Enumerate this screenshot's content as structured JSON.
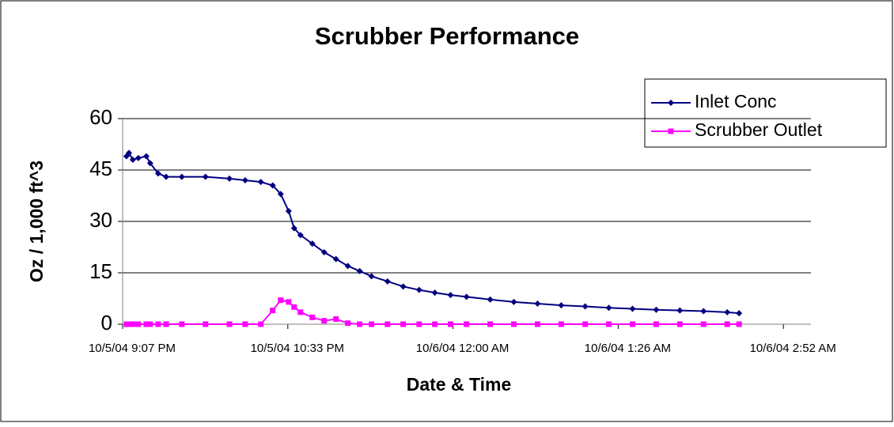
{
  "chart_data": {
    "type": "line",
    "title": "Scrubber Performance",
    "x_label": "Date & Time",
    "y_label": "Oz / 1,000 ft^3",
    "x": [
      38265.8814,
      38265.8823,
      38265.8837,
      38265.8857,
      38265.8886,
      38265.89,
      38265.8929,
      38265.8958,
      38265.9015,
      38265.9101,
      38265.9188,
      38265.9245,
      38265.9302,
      38265.9345,
      38265.9374,
      38265.9403,
      38265.9423,
      38265.9446,
      38265.9489,
      38265.9532,
      38265.9575,
      38265.9618,
      38265.9661,
      38265.9704,
      38265.9762,
      38265.9819,
      38265.9877,
      38265.9934,
      38265.9991,
      38266.0049,
      38266.0135,
      38266.0221,
      38266.0307,
      38266.0393,
      38266.048,
      38266.0566,
      38266.0652,
      38266.0738,
      38266.0824,
      38266.091,
      38266.0996,
      38266.1039
    ],
    "series": [
      {
        "name": "Inlet Conc",
        "color": "#000080",
        "marker": "diamond",
        "values": [
          49,
          50,
          48,
          48.5,
          49,
          47,
          44,
          43,
          43,
          43,
          42.5,
          42,
          41.5,
          40.5,
          38,
          33,
          28,
          26,
          23.5,
          21,
          19,
          17,
          15.5,
          14,
          12.5,
          11,
          10,
          9.2,
          8.5,
          8,
          7.2,
          6.5,
          6,
          5.5,
          5.2,
          4.8,
          4.5,
          4.2,
          4,
          3.8,
          3.5,
          3.2
        ]
      },
      {
        "name": "Scrubber Outlet",
        "color": "#ff00ff",
        "marker": "square",
        "values": [
          0,
          0,
          0,
          0,
          0,
          0,
          0,
          0,
          0,
          0,
          0,
          0,
          0,
          4,
          7,
          6.5,
          5,
          3.5,
          2,
          1,
          1.5,
          0.3,
          0,
          0,
          0,
          0,
          0,
          0,
          0,
          0,
          0,
          0,
          0,
          0,
          0,
          0,
          0,
          0,
          0,
          0,
          0,
          0
        ]
      }
    ],
    "xlim": [
      38265.88,
      38266.13
    ],
    "xticks": [
      {
        "value": 38265.88,
        "label": "10/5/04 9:07 PM"
      },
      {
        "value": 38265.94,
        "label": "10/5/04 10:33 PM"
      },
      {
        "value": 38266.0,
        "label": "10/6/04 12:00 AM"
      },
      {
        "value": 38266.06,
        "label": "10/6/04 1:26 AM"
      },
      {
        "value": 38266.12,
        "label": "10/6/04 2:52 AM"
      }
    ],
    "ylim": [
      0,
      60
    ],
    "yticks": [
      0,
      15,
      30,
      45,
      60
    ],
    "grid": true,
    "legend": "top-right"
  }
}
